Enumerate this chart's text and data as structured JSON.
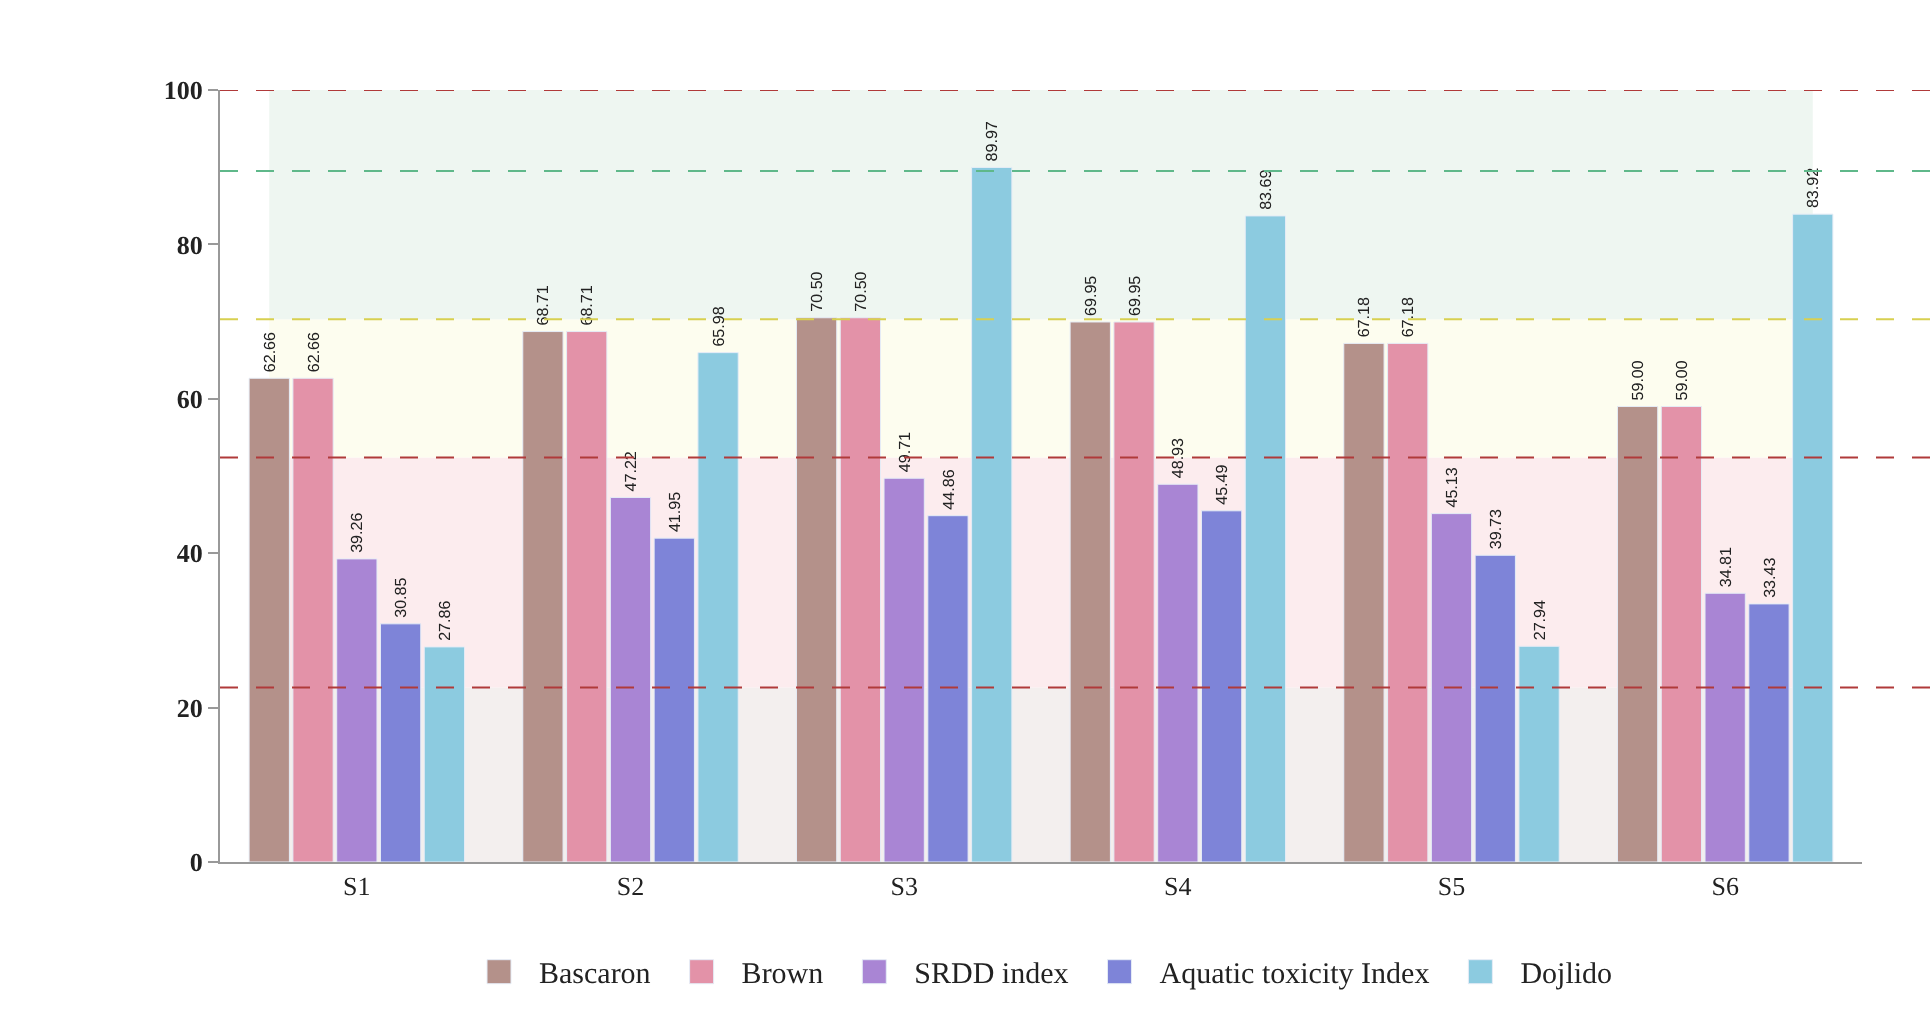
{
  "chart_data": {
    "type": "bar",
    "categories": [
      "S1",
      "S2",
      "S3",
      "S4",
      "S5",
      "S6"
    ],
    "series": [
      {
        "name": "Bascaron",
        "color": "#b4918a",
        "values": [
          62.66,
          68.71,
          70.5,
          69.95,
          67.18,
          59.0
        ],
        "value_labels": [
          "62.66",
          "68.71",
          "70.50",
          "69.95",
          "67.18",
          "59.00"
        ]
      },
      {
        "name": "Brown",
        "color": "#e392a8",
        "values": [
          62.66,
          68.71,
          70.5,
          69.95,
          67.18,
          59.0
        ],
        "value_labels": [
          "62.66",
          "68.71",
          "70.50",
          "69.95",
          "67.18",
          "59.00"
        ]
      },
      {
        "name": "SRDD index",
        "color": "#a985d4",
        "values": [
          39.26,
          47.22,
          49.71,
          48.93,
          45.13,
          34.81
        ],
        "value_labels": [
          "39.26",
          "47.22",
          "49.71",
          "48.93",
          "45.13",
          "34.81"
        ]
      },
      {
        "name": "Aquatic toxicity Index",
        "color": "#7e84d8",
        "values": [
          30.85,
          41.95,
          44.86,
          45.49,
          39.73,
          33.43
        ],
        "value_labels": [
          "30.85",
          "41.95",
          "44.86",
          "45.49",
          "39.73",
          "33.43"
        ]
      },
      {
        "name": "Dojlido",
        "color": "#8ccbe0",
        "values": [
          27.86,
          65.98,
          89.97,
          83.69,
          27.94,
          83.92
        ],
        "value_labels": [
          "27.86",
          "65.98",
          "89.97",
          "83.69",
          "27.94",
          "83.92"
        ]
      }
    ],
    "ylim": [
      0,
      100
    ],
    "yticks": [
      0,
      20,
      40,
      60,
      80,
      100
    ],
    "ref_lines": [
      {
        "axis": "y",
        "value": 100,
        "color": "#b03a3a",
        "line_style": "dashed"
      },
      {
        "axis": "y",
        "value": 89.5,
        "color": "#5fb88a",
        "line_style": "dashed"
      },
      {
        "axis": "y",
        "value": 70.3,
        "color": "#d8d050",
        "line_style": "dashed"
      },
      {
        "axis": "y",
        "value": 52.4,
        "color": "#b03a3a",
        "line_style": "dashed"
      },
      {
        "axis": "y",
        "value": 22.6,
        "color": "#b03a3a",
        "line_style": "dashed"
      }
    ],
    "bands": [
      {
        "axis": "y",
        "from": 0,
        "to": 22.6,
        "color": "#f3efee"
      },
      {
        "axis": "y",
        "from": 22.6,
        "to": 52.4,
        "color": "#fcecee"
      },
      {
        "axis": "y",
        "from": 52.4,
        "to": 70.3,
        "color": "#fdfdef"
      },
      {
        "axis": "y",
        "from": 70.3,
        "to": 100,
        "color": "#eef6f1"
      }
    ],
    "grid": false,
    "legend": "bottom"
  }
}
